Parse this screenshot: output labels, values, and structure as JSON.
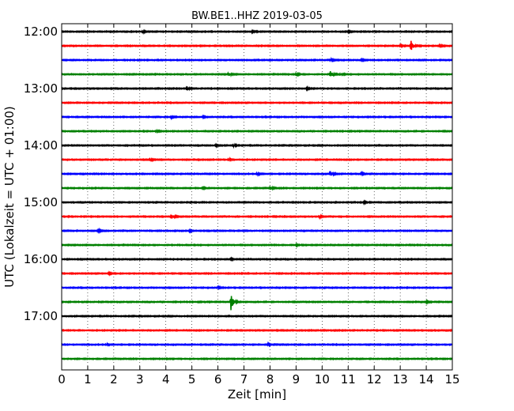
{
  "chart_data": {
    "type": "line",
    "title": "BW.BE1..HHZ 2019-03-05",
    "xlabel": "Zeit  [min]",
    "ylabel": "UTC (Lokalzeit = UTC + 01:00)",
    "xlim": [
      0,
      15
    ],
    "x_ticks": [
      "0",
      "1",
      "2",
      "3",
      "4",
      "5",
      "6",
      "7",
      "8",
      "9",
      "10",
      "11",
      "12",
      "13",
      "14",
      "15"
    ],
    "y_tick_labels": [
      "12:00",
      "13:00",
      "14:00",
      "15:00",
      "16:00",
      "17:00"
    ],
    "grid": "vertical dotted at each minute",
    "trace_colors": [
      "#000000",
      "#ff0000",
      "#0000ff",
      "#008000"
    ],
    "traces": [
      {
        "start": "12:00",
        "color": "#000000",
        "events": [
          {
            "t": 3.1,
            "amp": 0.35
          },
          {
            "t": 7.3,
            "amp": 0.25
          },
          {
            "t": 11.0,
            "amp": 0.25
          }
        ]
      },
      {
        "start": "12:15",
        "color": "#ff0000",
        "events": [
          {
            "t": 13.4,
            "amp": 1.7
          },
          {
            "t": 14.5,
            "amp": 0.3
          },
          {
            "t": 13.0,
            "amp": 0.25
          }
        ]
      },
      {
        "start": "12:30",
        "color": "#0000ff",
        "events": [
          {
            "t": 10.3,
            "amp": 0.35
          },
          {
            "t": 11.5,
            "amp": 0.25
          }
        ]
      },
      {
        "start": "12:45",
        "color": "#008000",
        "events": [
          {
            "t": 6.4,
            "amp": 0.55
          },
          {
            "t": 9.0,
            "amp": 0.4
          },
          {
            "t": 10.3,
            "amp": 1.3
          },
          {
            "t": 10.7,
            "amp": 0.3
          }
        ]
      },
      {
        "start": "13:00",
        "color": "#000000",
        "events": [
          {
            "t": 4.8,
            "amp": 0.65
          },
          {
            "t": 9.4,
            "amp": 0.25
          }
        ]
      },
      {
        "start": "13:15",
        "color": "#ff0000",
        "events": []
      },
      {
        "start": "13:30",
        "color": "#0000ff",
        "events": [
          {
            "t": 4.2,
            "amp": 0.3
          },
          {
            "t": 5.4,
            "amp": 0.2
          }
        ]
      },
      {
        "start": "13:45",
        "color": "#008000",
        "events": [
          {
            "t": 3.6,
            "amp": 0.3
          }
        ]
      },
      {
        "start": "14:00",
        "color": "#000000",
        "events": [
          {
            "t": 5.9,
            "amp": 0.25
          },
          {
            "t": 6.6,
            "amp": 0.3
          }
        ]
      },
      {
        "start": "14:15",
        "color": "#ff0000",
        "events": [
          {
            "t": 3.4,
            "amp": 0.3
          },
          {
            "t": 6.4,
            "amp": 0.3
          }
        ]
      },
      {
        "start": "14:30",
        "color": "#0000ff",
        "events": [
          {
            "t": 7.5,
            "amp": 0.3
          },
          {
            "t": 10.3,
            "amp": 0.9
          },
          {
            "t": 11.5,
            "amp": 0.25
          }
        ]
      },
      {
        "start": "14:45",
        "color": "#008000",
        "events": [
          {
            "t": 8.0,
            "amp": 0.5
          },
          {
            "t": 5.4,
            "amp": 0.25
          }
        ]
      },
      {
        "start": "15:00",
        "color": "#000000",
        "events": [
          {
            "t": 11.6,
            "amp": 0.2
          }
        ]
      },
      {
        "start": "15:15",
        "color": "#ff0000",
        "events": [
          {
            "t": 4.2,
            "amp": 0.85
          },
          {
            "t": 9.9,
            "amp": 0.25
          }
        ]
      },
      {
        "start": "15:30",
        "color": "#0000ff",
        "events": [
          {
            "t": 1.4,
            "amp": 0.3
          },
          {
            "t": 4.9,
            "amp": 0.25
          }
        ]
      },
      {
        "start": "15:45",
        "color": "#008000",
        "events": [
          {
            "t": 9.0,
            "amp": 0.2
          }
        ]
      },
      {
        "start": "16:00",
        "color": "#000000",
        "events": [
          {
            "t": 6.5,
            "amp": 0.2
          }
        ]
      },
      {
        "start": "16:15",
        "color": "#ff0000",
        "events": [
          {
            "t": 1.8,
            "amp": 0.25
          }
        ]
      },
      {
        "start": "16:30",
        "color": "#0000ff",
        "events": [
          {
            "t": 6.0,
            "amp": 0.2
          }
        ]
      },
      {
        "start": "16:45",
        "color": "#008000",
        "events": [
          {
            "t": 6.5,
            "amp": 2.6
          },
          {
            "t": 14.0,
            "amp": 0.3
          }
        ]
      },
      {
        "start": "17:00",
        "color": "#000000",
        "events": []
      },
      {
        "start": "17:15",
        "color": "#ff0000",
        "events": []
      },
      {
        "start": "17:30",
        "color": "#0000ff",
        "events": [
          {
            "t": 1.7,
            "amp": 0.25
          },
          {
            "t": 7.9,
            "amp": 0.35
          }
        ]
      },
      {
        "start": "17:45",
        "color": "#008000",
        "events": []
      }
    ]
  }
}
